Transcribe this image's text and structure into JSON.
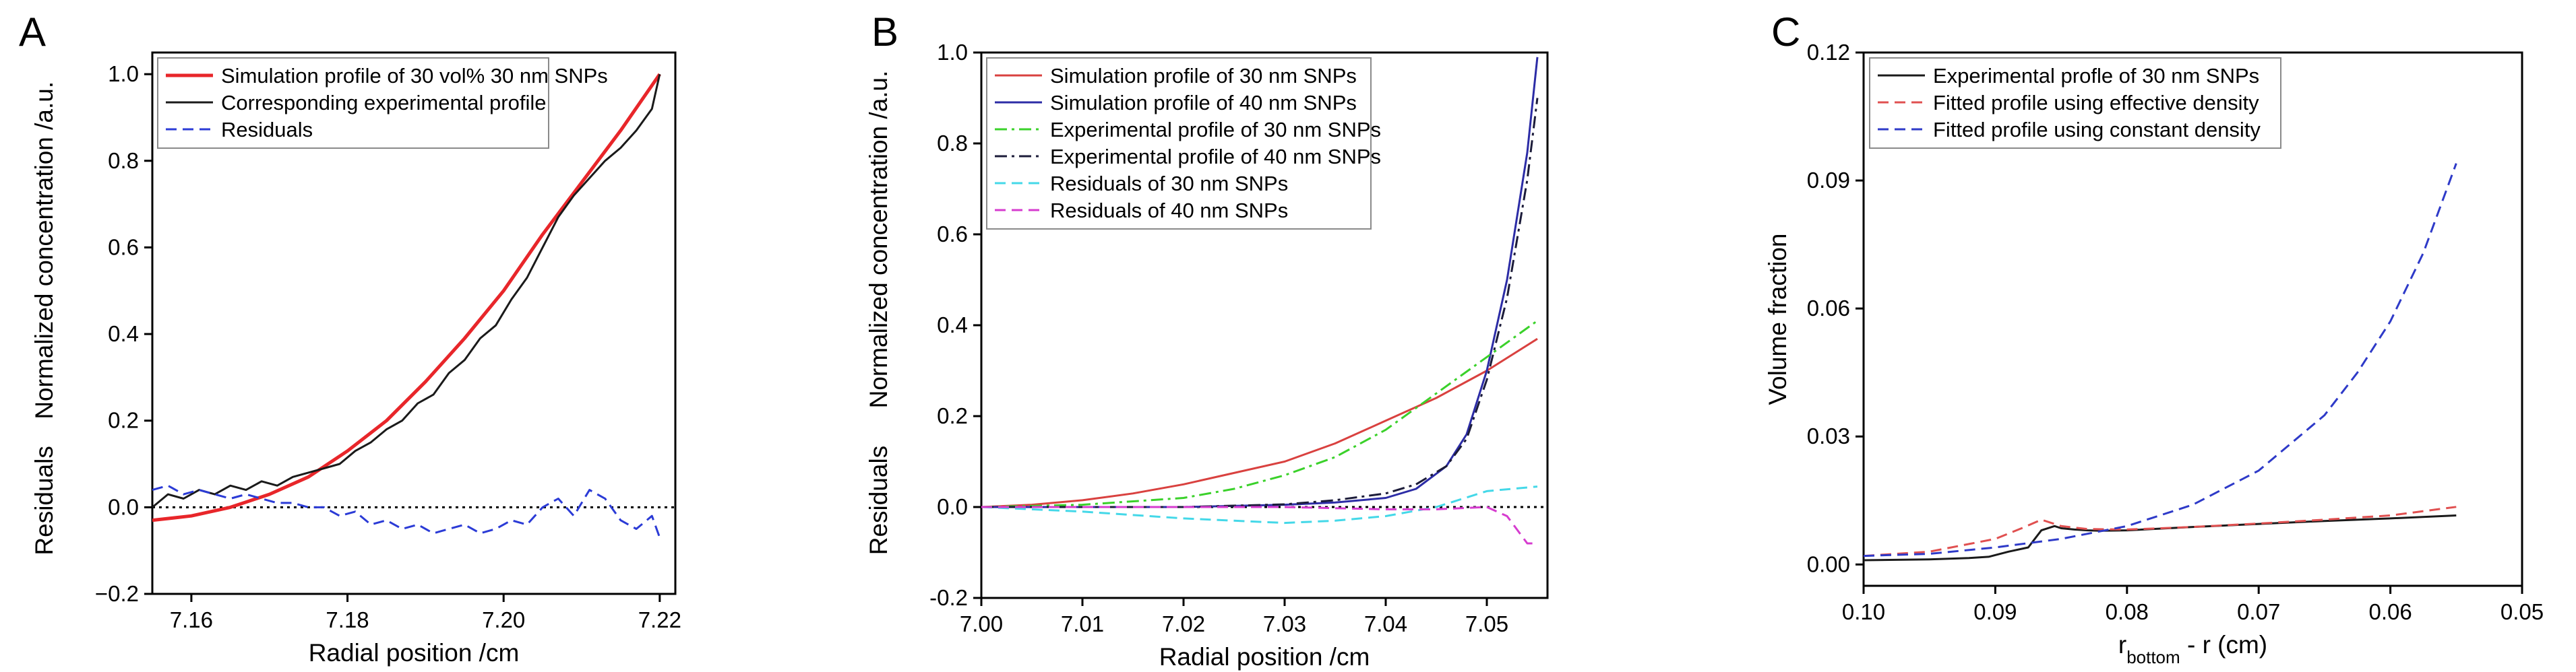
{
  "chart_data": [
    {
      "panel": "A",
      "type": "line",
      "xlabel": "Radial position /cm",
      "ylabel_left": "Residuals",
      "ylabel_right": "Normalized concentration /a.u.",
      "xlim": [
        7.155,
        7.222
      ],
      "ylim": [
        -0.2,
        1.05
      ],
      "xticks": [
        7.16,
        7.18,
        7.2,
        7.22
      ],
      "xtick_labels": [
        "7.16",
        "7.18",
        "7.20",
        "7.22"
      ],
      "yticks": [
        -0.2,
        0.0,
        0.2,
        0.4,
        0.6,
        0.8,
        1.0
      ],
      "ytick_labels": [
        "−0.2",
        "0.0",
        "0.2",
        "0.4",
        "0.6",
        "0.8",
        "1.0"
      ],
      "legend_position": "top-left",
      "series": [
        {
          "name": "Simulation profile of 30 vol% 30 nm SNPs",
          "color": "#e8262a",
          "dash": "solid",
          "width": 5,
          "x": [
            7.155,
            7.16,
            7.165,
            7.17,
            7.175,
            7.18,
            7.185,
            7.19,
            7.195,
            7.2,
            7.205,
            7.21,
            7.215,
            7.22
          ],
          "y": [
            -0.03,
            -0.02,
            0.0,
            0.03,
            0.07,
            0.13,
            0.2,
            0.29,
            0.39,
            0.5,
            0.63,
            0.75,
            0.87,
            1.0
          ]
        },
        {
          "name": "Corresponding experimental profile",
          "color": "#1a1a1a",
          "dash": "solid",
          "width": 3,
          "x": [
            7.155,
            7.157,
            7.159,
            7.161,
            7.163,
            7.165,
            7.167,
            7.169,
            7.171,
            7.173,
            7.175,
            7.177,
            7.179,
            7.181,
            7.183,
            7.185,
            7.187,
            7.189,
            7.191,
            7.193,
            7.195,
            7.197,
            7.199,
            7.201,
            7.203,
            7.205,
            7.207,
            7.209,
            7.211,
            7.213,
            7.215,
            7.217,
            7.219,
            7.22
          ],
          "y": [
            0.0,
            0.03,
            0.02,
            0.04,
            0.03,
            0.05,
            0.04,
            0.06,
            0.05,
            0.07,
            0.08,
            0.09,
            0.1,
            0.13,
            0.15,
            0.18,
            0.2,
            0.24,
            0.26,
            0.31,
            0.34,
            0.39,
            0.42,
            0.48,
            0.53,
            0.6,
            0.67,
            0.72,
            0.76,
            0.8,
            0.83,
            0.87,
            0.92,
            1.0
          ]
        },
        {
          "name": "Residuals",
          "color": "#2b3bd6",
          "dash": "long",
          "width": 3,
          "x": [
            7.155,
            7.157,
            7.159,
            7.161,
            7.163,
            7.165,
            7.167,
            7.169,
            7.171,
            7.173,
            7.175,
            7.177,
            7.179,
            7.181,
            7.183,
            7.185,
            7.187,
            7.189,
            7.191,
            7.193,
            7.195,
            7.197,
            7.199,
            7.201,
            7.203,
            7.205,
            7.207,
            7.209,
            7.211,
            7.213,
            7.215,
            7.217,
            7.219,
            7.22
          ],
          "y": [
            0.04,
            0.05,
            0.03,
            0.04,
            0.03,
            0.02,
            0.03,
            0.02,
            0.01,
            0.01,
            0.0,
            0.0,
            -0.02,
            -0.01,
            -0.04,
            -0.03,
            -0.05,
            -0.04,
            -0.06,
            -0.05,
            -0.04,
            -0.06,
            -0.05,
            -0.03,
            -0.04,
            0.0,
            0.02,
            -0.02,
            0.04,
            0.02,
            -0.03,
            -0.05,
            -0.02,
            -0.07
          ]
        }
      ],
      "reference_line": {
        "y": 0.0,
        "color": "#000000",
        "dash": "dot"
      }
    },
    {
      "panel": "B",
      "type": "line",
      "xlabel": "Radial position /cm",
      "ylabel_left": "Residuals",
      "ylabel_right": "Normalized concentration /a.u.",
      "xlim": [
        7.0,
        7.056
      ],
      "ylim": [
        -0.2,
        1.0
      ],
      "xticks": [
        7.0,
        7.01,
        7.02,
        7.03,
        7.04,
        7.05
      ],
      "xtick_labels": [
        "7.00",
        "7.01",
        "7.02",
        "7.03",
        "7.04",
        "7.05"
      ],
      "yticks": [
        -0.2,
        0.0,
        0.2,
        0.4,
        0.6,
        0.8,
        1.0
      ],
      "ytick_labels": [
        "-0.2",
        "0.0",
        "0.2",
        "0.4",
        "0.6",
        "0.8",
        "1.0"
      ],
      "legend_position": "top-left",
      "series": [
        {
          "name": "Simulation profile of 30 nm SNPs",
          "color": "#d9413f",
          "dash": "solid",
          "width": 3,
          "x": [
            7.0,
            7.005,
            7.01,
            7.015,
            7.02,
            7.025,
            7.03,
            7.035,
            7.04,
            7.045,
            7.05,
            7.055
          ],
          "y": [
            0.0,
            0.005,
            0.015,
            0.03,
            0.05,
            0.075,
            0.1,
            0.14,
            0.19,
            0.24,
            0.3,
            0.37
          ]
        },
        {
          "name": "Simulation profile of 40 nm SNPs",
          "color": "#2c2ca6",
          "dash": "solid",
          "width": 3,
          "x": [
            7.0,
            7.02,
            7.03,
            7.035,
            7.04,
            7.043,
            7.046,
            7.048,
            7.05,
            7.052,
            7.054,
            7.055
          ],
          "y": [
            0.0,
            0.0,
            0.005,
            0.01,
            0.02,
            0.04,
            0.09,
            0.16,
            0.3,
            0.5,
            0.78,
            0.99
          ]
        },
        {
          "name": "Experimental profile of 30 nm SNPs",
          "color": "#3ad12a",
          "dash": "dashdot",
          "width": 3,
          "x": [
            7.0,
            7.01,
            7.02,
            7.025,
            7.03,
            7.035,
            7.04,
            7.045,
            7.05,
            7.055
          ],
          "y": [
            0.0,
            0.005,
            0.02,
            0.04,
            0.07,
            0.11,
            0.17,
            0.25,
            0.33,
            0.41
          ]
        },
        {
          "name": "Experimental profile of 40 nm SNPs",
          "color": "#1c1c3a",
          "dash": "dashdot",
          "width": 3,
          "x": [
            7.0,
            7.02,
            7.03,
            7.035,
            7.04,
            7.043,
            7.046,
            7.048,
            7.05,
            7.052,
            7.054,
            7.055
          ],
          "y": [
            0.0,
            0.0,
            0.006,
            0.015,
            0.03,
            0.05,
            0.09,
            0.15,
            0.28,
            0.46,
            0.72,
            0.9
          ]
        },
        {
          "name": "Residuals of 30 nm SNPs",
          "color": "#44d8e8",
          "dash": "long",
          "width": 3,
          "x": [
            7.0,
            7.01,
            7.02,
            7.025,
            7.03,
            7.035,
            7.04,
            7.045,
            7.05,
            7.055
          ],
          "y": [
            0.0,
            -0.01,
            -0.025,
            -0.03,
            -0.035,
            -0.03,
            -0.02,
            0.0,
            0.035,
            0.045
          ]
        },
        {
          "name": "Residuals of 40 nm SNPs",
          "color": "#d63ccf",
          "dash": "long",
          "width": 3,
          "x": [
            7.0,
            7.02,
            7.03,
            7.04,
            7.045,
            7.05,
            7.052,
            7.054,
            7.055
          ],
          "y": [
            0.0,
            0.0,
            0.0,
            -0.005,
            -0.005,
            0.0,
            -0.02,
            -0.08,
            -0.08
          ]
        }
      ],
      "reference_line": {
        "y": 0.0,
        "color": "#000000",
        "dash": "dot"
      }
    },
    {
      "panel": "C",
      "type": "line",
      "xlabel": "r",
      "xlabel_subscript": "bottom",
      "xlabel_suffix": " - r (cm)",
      "ylabel": "Volume fraction",
      "xlim": [
        0.1,
        0.05
      ],
      "ylim": [
        -0.005,
        0.12
      ],
      "xticks": [
        0.1,
        0.09,
        0.08,
        0.07,
        0.06,
        0.05
      ],
      "xtick_labels": [
        "0.10",
        "0.09",
        "0.08",
        "0.07",
        "0.06",
        "0.05"
      ],
      "yticks": [
        0.0,
        0.03,
        0.06,
        0.09,
        0.12
      ],
      "ytick_labels": [
        "0.00",
        "0.03",
        "0.06",
        "0.09",
        "0.12"
      ],
      "legend_position": "top-left",
      "series": [
        {
          "name": "Experimental profle of 30 nm SNPs",
          "color": "#1a1a1a",
          "dash": "solid",
          "width": 3,
          "x": [
            0.1,
            0.095,
            0.092,
            0.0905,
            0.089,
            0.0875,
            0.0865,
            0.0855,
            0.085,
            0.084,
            0.083,
            0.082,
            0.08,
            0.075,
            0.07,
            0.065,
            0.06,
            0.055
          ],
          "y": [
            0.001,
            0.0012,
            0.0015,
            0.0018,
            0.003,
            0.004,
            0.008,
            0.009,
            0.0085,
            0.0082,
            0.008,
            0.0079,
            0.008,
            0.0088,
            0.0095,
            0.0102,
            0.0108,
            0.0115
          ]
        },
        {
          "name": "Fitted profile using effective density",
          "color": "#e05050",
          "dash": "long",
          "width": 3,
          "x": [
            0.1,
            0.095,
            0.09,
            0.088,
            0.0865,
            0.085,
            0.083,
            0.08,
            0.075,
            0.07,
            0.065,
            0.06,
            0.055
          ],
          "y": [
            0.002,
            0.003,
            0.006,
            0.0085,
            0.0105,
            0.009,
            0.0083,
            0.0082,
            0.0088,
            0.0096,
            0.0105,
            0.0115,
            0.0135
          ]
        },
        {
          "name": "Fitted profile using constant density",
          "color": "#2e3ac8",
          "dash": "long",
          "width": 3,
          "x": [
            0.1,
            0.095,
            0.09,
            0.085,
            0.08,
            0.075,
            0.07,
            0.065,
            0.0625,
            0.06,
            0.0575,
            0.055
          ],
          "y": [
            0.002,
            0.0025,
            0.004,
            0.006,
            0.009,
            0.014,
            0.022,
            0.035,
            0.045,
            0.057,
            0.073,
            0.094
          ]
        }
      ]
    }
  ]
}
